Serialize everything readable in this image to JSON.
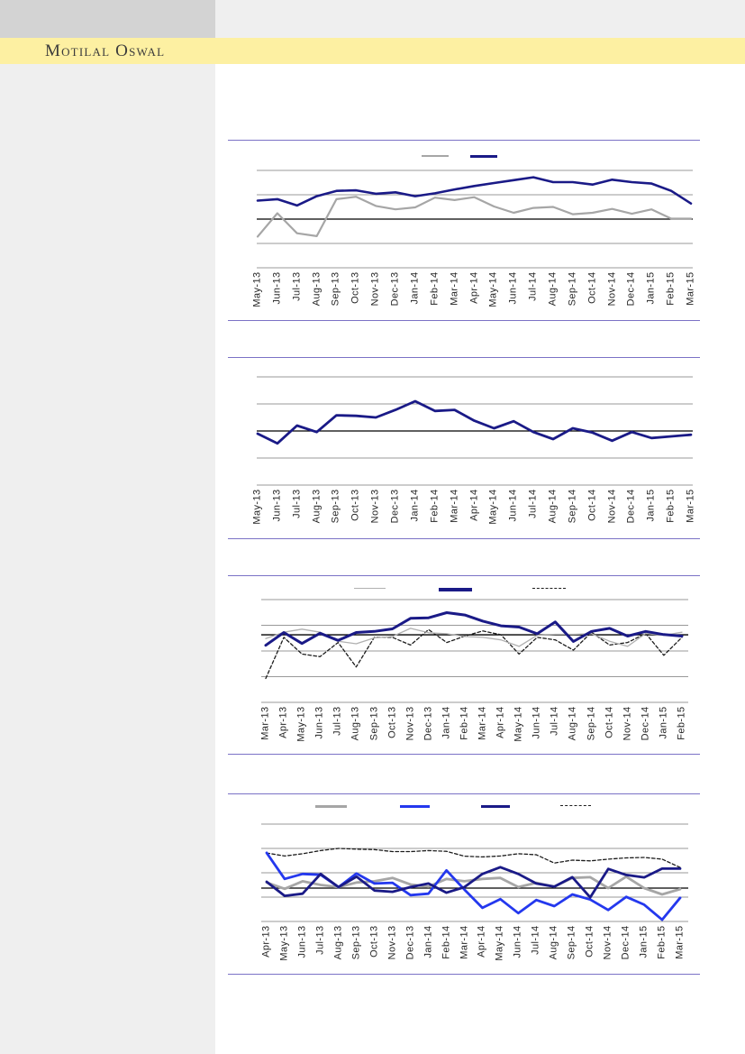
{
  "page": {
    "brand": "Motilal Oswal"
  },
  "colors": {
    "brand_band": "#fdf0a2",
    "header_block": "#d3d3d3",
    "sidebar_bg": "#efefef",
    "chart_border": "#7b72c6",
    "gridline": "#999999",
    "zero_line": "#000000",
    "series_navy": "#1a1a87",
    "series_blue": "#2438ee",
    "series_gray": "#a6a6a6",
    "series_dashed": "#1c1c1c"
  },
  "chart_data": [
    {
      "type": "line",
      "title": "",
      "legend": {
        "position": "top",
        "labels_visible": false,
        "entries": [
          "series-gray",
          "series-navy"
        ]
      },
      "grid": true,
      "ylim": [
        -10,
        10
      ],
      "gridlines": [
        10,
        5,
        0,
        -5,
        -10
      ],
      "zero_line": 0,
      "categories": [
        "May-13",
        "Jun-13",
        "Jul-13",
        "Aug-13",
        "Sep-13",
        "Oct-13",
        "Nov-13",
        "Dec-13",
        "Jan-14",
        "Feb-14",
        "Mar-14",
        "Apr-14",
        "May-14",
        "Jun-14",
        "Jul-14",
        "Aug-14",
        "Sep-14",
        "Oct-14",
        "Nov-14",
        "Dec-14",
        "Jan-15",
        "Feb-15",
        "Mar-15"
      ],
      "series": [
        {
          "name": "series-gray",
          "color": "#a6a6a6",
          "width": 2.2,
          "dash": null,
          "values": [
            -3.6,
            1.2,
            -2.9,
            -3.5,
            4.1,
            4.6,
            2.7,
            2.0,
            2.4,
            4.4,
            3.9,
            4.5,
            2.6,
            1.3,
            2.3,
            2.5,
            1.0,
            1.3,
            2.1,
            1.1,
            2.0,
            0.1,
            0.1
          ]
        },
        {
          "name": "series-navy",
          "color": "#1a1a87",
          "width": 2.6,
          "dash": null,
          "values": [
            3.8,
            4.1,
            2.8,
            4.7,
            5.8,
            5.9,
            5.2,
            5.5,
            4.7,
            5.3,
            6.1,
            6.8,
            7.4,
            8.0,
            8.6,
            7.6,
            7.6,
            7.1,
            8.1,
            7.6,
            7.3,
            5.8,
            3.2
          ]
        }
      ]
    },
    {
      "type": "line",
      "title": "",
      "legend": {
        "position": "none",
        "labels_visible": false,
        "entries": []
      },
      "grid": true,
      "ylim": [
        -10,
        10
      ],
      "gridlines": [
        10,
        5,
        0,
        -5,
        -10
      ],
      "zero_line": 0,
      "categories": [
        "May-13",
        "Jun-13",
        "Jul-13",
        "Aug-13",
        "Sep-13",
        "Oct-13",
        "Nov-13",
        "Dec-13",
        "Jan-14",
        "Feb-14",
        "Mar-14",
        "Apr-14",
        "May-14",
        "Jun-14",
        "Jul-14",
        "Aug-14",
        "Sep-14",
        "Oct-14",
        "Nov-14",
        "Dec-14",
        "Jan-15",
        "Feb-15",
        "Mar-15"
      ],
      "series": [
        {
          "name": "series-navy",
          "color": "#1a1a87",
          "width": 2.8,
          "dash": null,
          "values": [
            -0.5,
            -2.3,
            1.0,
            -0.2,
            2.9,
            2.8,
            2.5,
            3.9,
            5.5,
            3.7,
            3.9,
            1.9,
            0.5,
            1.8,
            -0.2,
            -1.5,
            0.5,
            -0.3,
            -1.8,
            -0.2,
            -1.3,
            -1.0,
            -0.7
          ]
        }
      ]
    },
    {
      "type": "line",
      "title": "",
      "legend": {
        "position": "top",
        "labels_visible": false,
        "entries": [
          "series-gray",
          "series-navy",
          "series-dashed"
        ]
      },
      "grid": true,
      "ylim": [
        -2.63,
        1.37
      ],
      "gridlines": [
        1.37,
        0.37,
        -0.63,
        -1.63,
        -2.63
      ],
      "zero_line": 0,
      "categories": [
        "Mar-13",
        "Apr-13",
        "May-13",
        "Jun-13",
        "Jul-13",
        "Aug-13",
        "Sep-13",
        "Oct-13",
        "Nov-13",
        "Dec-13",
        "Jan-14",
        "Feb-14",
        "Mar-14",
        "Apr-14",
        "May-14",
        "Jun-14",
        "Jul-14",
        "Aug-14",
        "Sep-14",
        "Oct-14",
        "Nov-14",
        "Dec-14",
        "Jan-15",
        "Feb-15"
      ],
      "series": [
        {
          "name": "series-dashed",
          "color": "#1c1c1c",
          "width": 1.3,
          "dash": "3.5 2.5",
          "values": [
            -1.7,
            -0.1,
            -0.75,
            -0.85,
            -0.3,
            -1.25,
            -0.1,
            -0.1,
            -0.4,
            0.2,
            -0.3,
            -0.05,
            0.15,
            0.0,
            -0.75,
            -0.1,
            -0.2,
            -0.6,
            0.1,
            -0.4,
            -0.3,
            0.05,
            -0.8,
            -0.1
          ]
        },
        {
          "name": "series-gray",
          "color": "#b0b0b0",
          "width": 1.3,
          "dash": null,
          "values": [
            -0.15,
            0.1,
            0.22,
            0.1,
            -0.25,
            -0.35,
            -0.12,
            -0.07,
            0.25,
            0.08,
            0.04,
            -0.07,
            -0.1,
            -0.2,
            -0.45,
            -0.02,
            0.02,
            0.02,
            0.04,
            -0.25,
            -0.45,
            0.05,
            -0.02,
            0.1
          ]
        },
        {
          "name": "series-navy",
          "color": "#1a1a87",
          "width": 3,
          "dash": null,
          "values": [
            -0.41,
            0.09,
            -0.34,
            0.06,
            -0.22,
            0.09,
            0.13,
            0.23,
            0.64,
            0.66,
            0.86,
            0.77,
            0.53,
            0.35,
            0.3,
            0.04,
            0.5,
            -0.26,
            0.13,
            0.25,
            -0.05,
            0.13,
            0.01,
            -0.05
          ]
        }
      ]
    },
    {
      "type": "line",
      "title": "",
      "legend": {
        "position": "top",
        "labels_visible": false,
        "entries": [
          "series-gray",
          "series-blue",
          "series-navy",
          "series-dashed"
        ]
      },
      "grid": true,
      "ylim": [
        -1.37,
        2.63
      ],
      "gridlines": [
        2.63,
        1.63,
        0.63,
        -0.37,
        -1.37
      ],
      "zero_line": 0,
      "categories": [
        "Apr-13",
        "May-13",
        "Jun-13",
        "Jul-13",
        "Aug-13",
        "Sep-13",
        "Oct-13",
        "Nov-13",
        "Dec-13",
        "Jan-14",
        "Feb-14",
        "Mar-14",
        "Apr-14",
        "May-14",
        "Jun-14",
        "Jul-14",
        "Aug-14",
        "Sep-14",
        "Oct-14",
        "Nov-14",
        "Dec-14",
        "Jan-15",
        "Feb-15",
        "Mar-15"
      ],
      "series": [
        {
          "name": "series-dashed",
          "color": "#1c1c1c",
          "width": 1.3,
          "dash": "3.5 2.5",
          "values": [
            1.44,
            1.32,
            1.41,
            1.54,
            1.63,
            1.6,
            1.58,
            1.5,
            1.5,
            1.54,
            1.51,
            1.31,
            1.28,
            1.32,
            1.41,
            1.37,
            1.03,
            1.15,
            1.12,
            1.19,
            1.24,
            1.26,
            1.19,
            0.85
          ]
        },
        {
          "name": "series-gray",
          "color": "#a6a6a6",
          "width": 2.8,
          "dash": null,
          "values": [
            0.23,
            -0.03,
            0.28,
            0.13,
            0.04,
            0.23,
            0.28,
            0.42,
            0.15,
            0.06,
            0.38,
            0.28,
            0.38,
            0.42,
            0.04,
            0.22,
            0.06,
            0.42,
            0.45,
            0.0,
            0.47,
            0.0,
            -0.26,
            -0.04
          ]
        },
        {
          "name": "series-blue",
          "color": "#2438ee",
          "width": 2.8,
          "dash": null,
          "values": [
            1.45,
            0.38,
            0.58,
            0.55,
            0.04,
            0.6,
            0.19,
            0.22,
            -0.29,
            -0.23,
            0.73,
            -0.06,
            -0.81,
            -0.45,
            -1.03,
            -0.49,
            -0.74,
            -0.26,
            -0.47,
            -0.9,
            -0.36,
            -0.68,
            -1.3,
            -0.4
          ]
        },
        {
          "name": "series-navy",
          "color": "#1a1a87",
          "width": 2.8,
          "dash": null,
          "values": [
            0.26,
            -0.32,
            -0.23,
            0.58,
            0.04,
            0.47,
            -0.1,
            -0.15,
            0.04,
            0.19,
            -0.19,
            0.04,
            0.58,
            0.86,
            0.58,
            0.19,
            0.06,
            0.45,
            -0.38,
            0.79,
            0.54,
            0.44,
            0.8,
            0.8
          ]
        }
      ]
    }
  ]
}
